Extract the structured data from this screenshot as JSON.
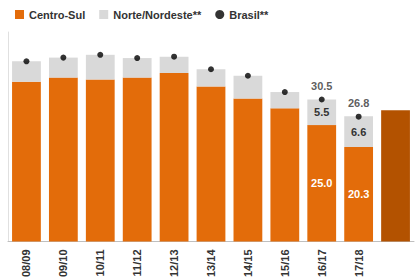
{
  "chart_data": {
    "type": "bar",
    "categories": [
      "08/09",
      "09/10",
      "10/11",
      "11/12",
      "12/13",
      "13/14",
      "14/15",
      "15/16",
      "16/17",
      "17/18",
      null
    ],
    "series": [
      {
        "name": "Centro-Sul",
        "type": "bar",
        "color": "#e36c0a",
        "colors": [
          "#e36c0a",
          "#e36c0a",
          "#e36c0a",
          "#e36c0a",
          "#e36c0a",
          "#e36c0a",
          "#e36c0a",
          "#e36c0a",
          "#e36c0a",
          "#e36c0a",
          "#b35200"
        ],
        "values": [
          34.3,
          35.2,
          34.8,
          35.2,
          36.2,
          33.3,
          30.7,
          28.6,
          25.0,
          20.3,
          28.2
        ],
        "value_labels": [
          null,
          null,
          null,
          null,
          null,
          null,
          null,
          null,
          "25.0",
          "20.3",
          null
        ]
      },
      {
        "name": "Norte/Nordeste**",
        "type": "bar",
        "color": "#d9d9d9",
        "values": [
          4.4,
          4.3,
          5.3,
          4.2,
          3.5,
          3.7,
          4.9,
          3.5,
          5.5,
          6.6,
          null
        ],
        "value_labels": [
          null,
          null,
          null,
          null,
          null,
          null,
          null,
          null,
          "5.5",
          "6.6",
          null
        ]
      },
      {
        "name": "Brasil**",
        "type": "scatter",
        "color": "#000000",
        "marker": "circle",
        "values": [
          38.7,
          39.5,
          40.1,
          39.4,
          39.7,
          37.0,
          35.6,
          32.1,
          30.5,
          26.8,
          null
        ],
        "value_labels": [
          null,
          null,
          null,
          null,
          null,
          null,
          null,
          null,
          "30.5",
          "26.8",
          null
        ]
      }
    ],
    "ylim": [
      0,
      45
    ],
    "stacked": true,
    "data_labels": true,
    "legend": "top-left",
    "tick_labels": "x",
    "grid": false
  }
}
